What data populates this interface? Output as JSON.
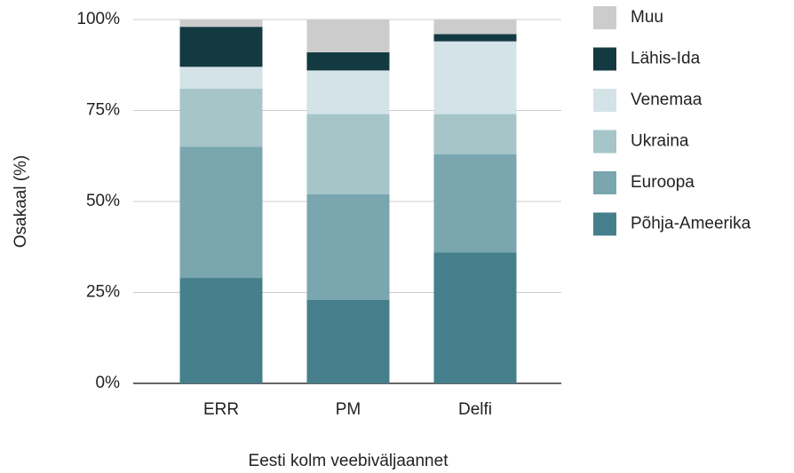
{
  "chart_data": {
    "type": "stacked_bar",
    "x_label": "Eesti kolm veebiväljaannet",
    "y_label": "Osakaal (%)",
    "categories": [
      "ERR",
      "PM",
      "Delfi"
    ],
    "series": [
      {
        "name": "Põhja-Ameerika",
        "color": "#467f8c",
        "values": [
          29,
          23,
          36
        ]
      },
      {
        "name": "Euroopa",
        "color": "#79a6af",
        "values": [
          36,
          29,
          27
        ]
      },
      {
        "name": "Ukraina",
        "color": "#a5c5c9",
        "values": [
          16,
          22,
          11
        ]
      },
      {
        "name": "Venemaa",
        "color": "#d3e3e7",
        "values": [
          6,
          12,
          20
        ]
      },
      {
        "name": "Lähis-Ida",
        "color": "#143a41",
        "values": [
          11,
          5,
          2
        ]
      },
      {
        "name": "Muu",
        "color": "#cccccc",
        "values": [
          2,
          9,
          4
        ]
      }
    ],
    "ylim": [
      0,
      100
    ],
    "yticks": [
      {
        "value": 0,
        "label": "0%"
      },
      {
        "value": 25,
        "label": "25%"
      },
      {
        "value": 50,
        "label": "50%"
      },
      {
        "value": 75,
        "label": "75%"
      },
      {
        "value": 100,
        "label": "100%"
      }
    ],
    "grid": true,
    "legend": "right"
  }
}
